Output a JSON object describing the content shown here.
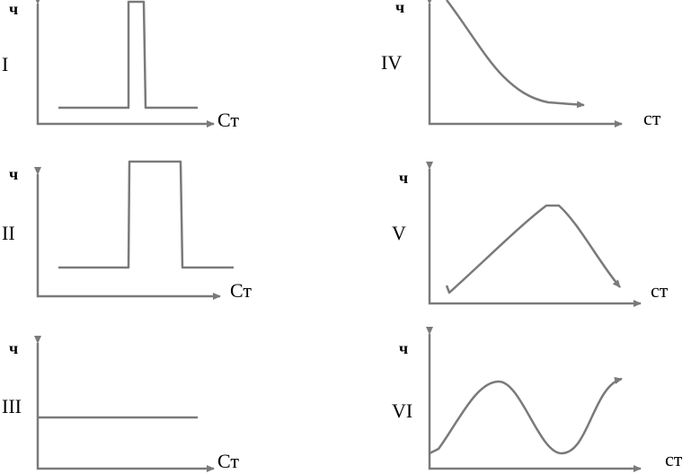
{
  "panels": [
    {
      "label": "I",
      "y_label": "ч",
      "x_label": "Ст"
    },
    {
      "label": "II",
      "y_label": "ч",
      "x_label": "Ст"
    },
    {
      "label": "III",
      "y_label": "ч",
      "x_label": "Ст"
    },
    {
      "label": "IV",
      "y_label": "ч",
      "x_label": "ст"
    },
    {
      "label": "V",
      "y_label": "ч",
      "x_label": "ст"
    },
    {
      "label": "VI",
      "y_label": "ч",
      "x_label": "ст"
    }
  ]
}
